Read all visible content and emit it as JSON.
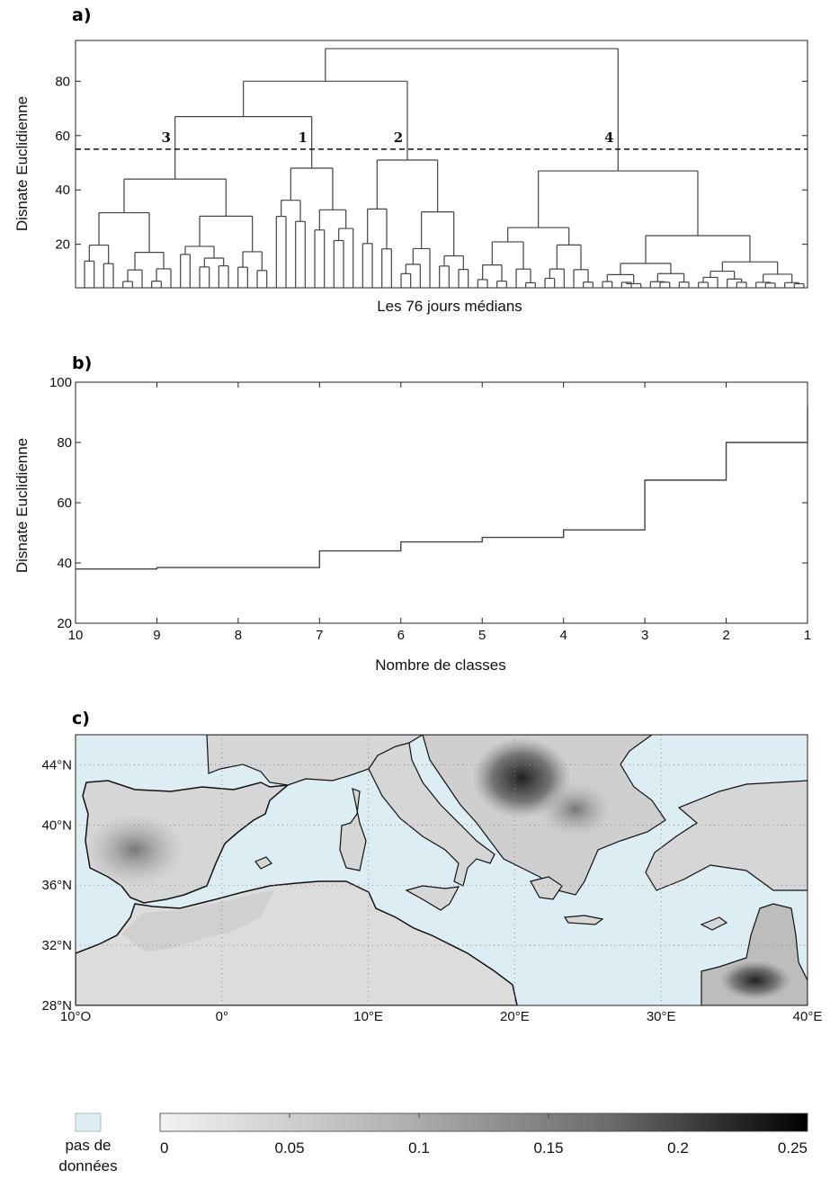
{
  "chart_data": [
    {
      "panel": "a)",
      "type": "dendrogram",
      "xlabel": "Les 76 jours médians",
      "ylabel": "Disnate Euclidienne",
      "yticks": [
        20,
        40,
        60,
        80
      ],
      "ylim": [
        4,
        95
      ],
      "n_leaves": 76,
      "cut_height": 55,
      "cut_line": "dashed",
      "clusters": [
        {
          "label": "3",
          "root_height": 67
        },
        {
          "label": "1",
          "root_height": 67
        },
        {
          "label": "2",
          "root_height": 80
        },
        {
          "label": "4",
          "root_height": 92
        }
      ],
      "top_merges": [
        {
          "height": 92,
          "joins": [
            "3+1+2",
            "4"
          ]
        },
        {
          "height": 80,
          "joins": [
            "3+1",
            "2"
          ]
        },
        {
          "height": 67,
          "joins": [
            "3",
            "1"
          ]
        }
      ]
    },
    {
      "panel": "b)",
      "type": "line",
      "step": true,
      "xlabel": "Nombre de classes",
      "ylabel": "Disnate Euclidienne",
      "x_reversed": true,
      "xlim": [
        10,
        1
      ],
      "ylim": [
        20,
        100
      ],
      "xticks": [
        10,
        9,
        8,
        7,
        6,
        5,
        4,
        3,
        2,
        1
      ],
      "yticks": [
        20,
        40,
        60,
        80,
        100
      ],
      "x": [
        10,
        9,
        8,
        7,
        6,
        5,
        4,
        3,
        2,
        1
      ],
      "y": [
        38,
        38.5,
        38.5,
        44,
        47,
        48.5,
        51,
        67.5,
        80,
        92
      ]
    },
    {
      "panel": "c)",
      "type": "heatmap",
      "subtype": "map",
      "xticks": [
        "10°O",
        "0°",
        "10°E",
        "20°E",
        "30°E",
        "40°E"
      ],
      "yticks": [
        "28°N",
        "32°N",
        "36°N",
        "40°N",
        "44°N"
      ],
      "lon_range": [
        -10,
        40
      ],
      "lat_range": [
        28,
        46
      ],
      "colorbar": {
        "ticks": [
          "0",
          "0.05",
          "0.1",
          "0.15",
          "0.2",
          "0.25"
        ],
        "range": [
          0,
          0.25
        ],
        "colormap": "grey (light to black)"
      },
      "legend_missing": "pas de données",
      "missing_color": "#dcedf3"
    }
  ]
}
